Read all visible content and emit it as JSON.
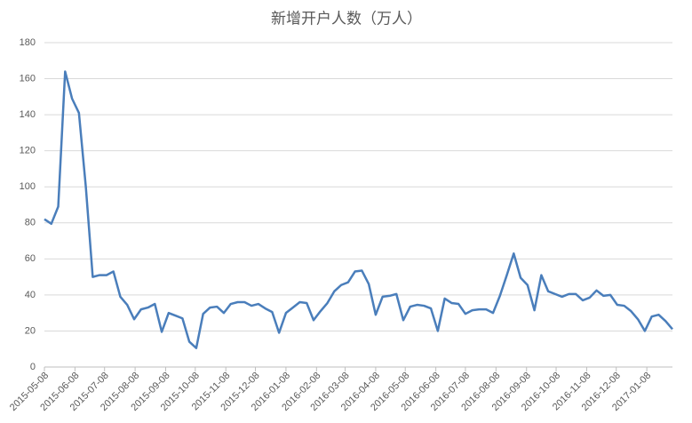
{
  "chart_data": {
    "type": "line",
    "title": "新增开户人数（万人）",
    "x": [
      "2015-05-08",
      "2015-05-15",
      "2015-05-22",
      "2015-05-29",
      "2015-06-05",
      "2015-06-12",
      "2015-06-19",
      "2015-06-26",
      "2015-07-03",
      "2015-07-10",
      "2015-07-17",
      "2015-07-24",
      "2015-07-31",
      "2015-08-07",
      "2015-08-14",
      "2015-08-21",
      "2015-08-28",
      "2015-09-04",
      "2015-09-11",
      "2015-09-18",
      "2015-09-25",
      "2015-10-02",
      "2015-10-09",
      "2015-10-16",
      "2015-10-23",
      "2015-10-30",
      "2015-11-06",
      "2015-11-13",
      "2015-11-20",
      "2015-11-27",
      "2015-12-04",
      "2015-12-11",
      "2015-12-18",
      "2015-12-25",
      "2016-01-01",
      "2016-01-08",
      "2016-01-15",
      "2016-01-22",
      "2016-01-29",
      "2016-02-05",
      "2016-02-12",
      "2016-02-19",
      "2016-02-26",
      "2016-03-04",
      "2016-03-11",
      "2016-03-18",
      "2016-03-25",
      "2016-04-01",
      "2016-04-08",
      "2016-04-15",
      "2016-04-22",
      "2016-04-29",
      "2016-05-06",
      "2016-05-13",
      "2016-05-20",
      "2016-05-27",
      "2016-06-03",
      "2016-06-10",
      "2016-06-17",
      "2016-06-24",
      "2016-07-01",
      "2016-07-08",
      "2016-07-15",
      "2016-07-22",
      "2016-07-29",
      "2016-08-05",
      "2016-08-12",
      "2016-08-19",
      "2016-08-26",
      "2016-09-02",
      "2016-09-09",
      "2016-09-16",
      "2016-09-23",
      "2016-09-30",
      "2016-10-07",
      "2016-10-14",
      "2016-10-21",
      "2016-10-28",
      "2016-11-04",
      "2016-11-11",
      "2016-11-18",
      "2016-11-25",
      "2016-12-02",
      "2016-12-09",
      "2016-12-16",
      "2016-12-23",
      "2016-12-30",
      "2017-01-06",
      "2017-01-13",
      "2017-01-20",
      "2017-01-27",
      "2017-02-03"
    ],
    "series": [
      {
        "color": "#4a7ebb",
        "values": [
          82,
          79.5,
          89,
          164,
          149,
          141,
          100,
          50,
          51,
          51,
          53,
          39,
          34.5,
          26.5,
          32,
          33,
          35,
          19.5,
          30,
          28.5,
          27,
          14,
          10.5,
          29.5,
          33,
          33.5,
          30,
          35,
          36,
          36,
          34,
          35,
          32.5,
          30.5,
          19,
          30,
          33,
          36,
          35.5,
          26,
          31,
          35.5,
          42,
          45.5,
          47,
          53,
          53.5,
          46,
          29,
          39,
          39.5,
          40.5,
          26,
          33.5,
          34.5,
          34,
          32.5,
          20,
          38,
          35.5,
          35,
          29.5,
          31.5,
          32,
          32,
          30,
          39.5,
          51,
          63,
          49.5,
          45.5,
          31.5,
          51,
          42,
          40.5,
          39,
          40.5,
          40.5,
          37,
          38.5,
          42.5,
          39.5,
          40,
          34.5,
          34,
          31,
          26.5,
          20,
          28,
          29,
          25.5,
          21
        ]
      }
    ],
    "xlim": [
      "2015-05-08",
      "2017-02-03"
    ],
    "xticks": [
      "2015-05-08",
      "2015-06-08",
      "2015-07-08",
      "2015-08-08",
      "2015-09-08",
      "2015-10-08",
      "2015-11-08",
      "2015-12-08",
      "2016-01-08",
      "2016-02-08",
      "2016-03-08",
      "2016-04-08",
      "2016-05-08",
      "2016-06-08",
      "2016-07-08",
      "2016-08-08",
      "2016-09-08",
      "2016-10-08",
      "2016-11-08",
      "2016-12-08",
      "2017-01-08"
    ],
    "ylim": [
      0,
      180
    ],
    "yticks": [
      0,
      20,
      40,
      60,
      80,
      100,
      120,
      140,
      160,
      180
    ],
    "grid": true
  }
}
